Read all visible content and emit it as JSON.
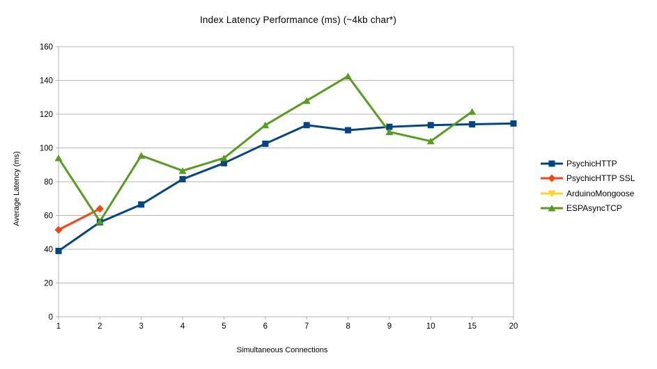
{
  "chart_data": {
    "type": "line",
    "title": "Index Latency Performance (ms) (~4kb char*)",
    "xlabel": "Simultaneous Connections",
    "ylabel": "Average Latency (ms)",
    "categories": [
      "1",
      "2",
      "3",
      "4",
      "5",
      "6",
      "7",
      "8",
      "9",
      "10",
      "15",
      "20"
    ],
    "ylim": [
      0,
      160
    ],
    "ytick_step": 20,
    "grid": "horizontal",
    "legend_position": "right",
    "series": [
      {
        "name": "PsychicHTTP",
        "color": "#004586",
        "marker": "square",
        "values": [
          39,
          56,
          66.5,
          81.5,
          91,
          102.5,
          113.5,
          110.5,
          112.5,
          113.5,
          114,
          114.5
        ]
      },
      {
        "name": "PsychicHTTP SSL",
        "color": "#FF420E",
        "marker": "diamond",
        "values": [
          51.5,
          64,
          null,
          null,
          null,
          null,
          null,
          null,
          null,
          null,
          null,
          null
        ]
      },
      {
        "name": "ArduinoMongoose",
        "color": "#FFD320",
        "marker": "triangle-down",
        "values": [
          null,
          null,
          null,
          null,
          null,
          null,
          null,
          null,
          null,
          null,
          null,
          null
        ]
      },
      {
        "name": "ESPAsyncTCP",
        "color": "#579D1C",
        "marker": "triangle-up",
        "values": [
          94,
          56.5,
          95.5,
          86.5,
          94,
          113.5,
          128,
          142.5,
          109.5,
          104,
          121.5,
          null
        ]
      }
    ]
  },
  "colors": {
    "grid": "#B3B3B3",
    "axis": "#B3B3B3",
    "text": "#000000",
    "background": "#FFFFFF"
  }
}
